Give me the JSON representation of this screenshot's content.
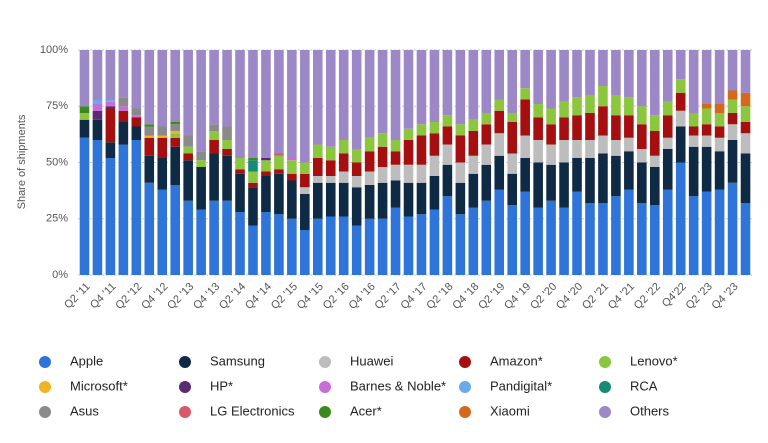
{
  "chart_data": {
    "type": "stacked_bar",
    "y_label": "Share of shipments",
    "categories": [
      "Q2 '11",
      null,
      "Q4 '11",
      null,
      "Q2 '12",
      null,
      "Q4 '12",
      null,
      "Q2 '13",
      null,
      "Q4 '13",
      null,
      "Q2 '14",
      null,
      "Q4 '14",
      null,
      "Q2 '15",
      null,
      "Q4 '15",
      null,
      "Q2 '16",
      null,
      "Q4 '16",
      null,
      "Q2 '17",
      null,
      "Q4 '17",
      null,
      "Q2 '18",
      null,
      "Q4 '18",
      null,
      "Q2 '19",
      null,
      "Q4 '19",
      null,
      "Q2 '20",
      null,
      "Q4 '20",
      null,
      "Q2 '21",
      null,
      "Q4 '21",
      null,
      "Q2 '22",
      null,
      "Q4'22",
      null,
      "Q2 '23",
      null,
      "Q4 '23",
      null
    ],
    "ylim": [
      0,
      100
    ],
    "yticks": [
      {
        "value": 0,
        "label": "0%"
      },
      {
        "value": 25,
        "label": "25%"
      },
      {
        "value": 50,
        "label": "50%"
      },
      {
        "value": 75,
        "label": "75%"
      },
      {
        "value": 100,
        "label": "100%"
      }
    ],
    "grid": true,
    "series": [
      {
        "name": "Apple",
        "color": "#2f74d8",
        "values": [
          61,
          60,
          52,
          58,
          60,
          41,
          38,
          40,
          33,
          29,
          33,
          33,
          28,
          22,
          28,
          27,
          25,
          20,
          25,
          26,
          26,
          22,
          25,
          25,
          30,
          26,
          27,
          29,
          35,
          27,
          30,
          33,
          38,
          31,
          37,
          30,
          33,
          30,
          37,
          32,
          32,
          35,
          38,
          32,
          31,
          38,
          50,
          35,
          37,
          38,
          41,
          32
        ]
      },
      {
        "name": "Samsung",
        "color": "#0f2a44",
        "values": [
          8,
          9,
          7,
          10,
          6,
          12,
          14,
          17,
          18,
          19,
          21,
          20,
          17,
          17,
          16,
          18,
          17,
          16,
          16,
          15,
          15,
          17,
          15,
          16,
          12,
          15,
          14,
          15,
          14,
          14,
          15,
          16,
          15,
          14,
          15,
          20,
          16,
          20,
          15,
          20,
          22,
          18,
          17,
          18,
          17,
          18,
          16,
          22,
          20,
          17,
          19,
          22
        ]
      },
      {
        "name": "Huawei",
        "color": "#bdbdbd",
        "values": [
          0,
          0,
          0,
          0,
          0,
          0,
          0,
          0,
          0,
          0,
          0,
          0,
          0,
          0,
          0,
          0,
          0,
          3,
          3,
          3,
          5,
          5,
          6,
          7,
          7,
          8,
          8,
          9,
          9,
          9,
          8,
          9,
          10,
          9,
          10,
          10,
          9,
          10,
          8,
          8,
          8,
          7,
          6,
          6,
          5,
          5,
          7,
          5,
          5,
          6,
          7,
          9
        ]
      },
      {
        "name": "Amazon*",
        "color": "#a50f0f",
        "values": [
          0,
          0,
          15,
          5,
          4,
          8,
          9,
          4,
          3,
          0,
          6,
          3,
          2,
          2,
          2,
          2,
          3,
          6,
          8,
          7,
          8,
          6,
          9,
          9,
          6,
          11,
          13,
          10,
          8,
          12,
          11,
          9,
          10,
          14,
          16,
          10,
          9,
          10,
          11,
          12,
          13,
          11,
          10,
          11,
          11,
          10,
          8,
          4,
          5,
          5,
          5,
          5
        ]
      },
      {
        "name": "Lenovo*",
        "color": "#8cc63e",
        "values": [
          3,
          0,
          0,
          0,
          0,
          0,
          0,
          2,
          3,
          3,
          4,
          4,
          5,
          5,
          5,
          6,
          6,
          5,
          6,
          6,
          6,
          6,
          6,
          6,
          5,
          5,
          5,
          5,
          5,
          5,
          5,
          5,
          5,
          4,
          5,
          6,
          7,
          7,
          8,
          8,
          9,
          9,
          8,
          8,
          7,
          6,
          6,
          6,
          7,
          6,
          6,
          7
        ]
      },
      {
        "name": "Microsoft*",
        "color": "#f0b323",
        "values": [
          0,
          0,
          0,
          0,
          0,
          1,
          1,
          1,
          0,
          0,
          0,
          0,
          0,
          0,
          0,
          0,
          0,
          0,
          0,
          0,
          0,
          0,
          0,
          0,
          0,
          0,
          0,
          0,
          0,
          0,
          0,
          0,
          0,
          0,
          0,
          0,
          0,
          0,
          0,
          0,
          0,
          0,
          0,
          0,
          0,
          0,
          0,
          0,
          0,
          0,
          0,
          0
        ]
      },
      {
        "name": "HP*",
        "color": "#5a2a73",
        "values": [
          0,
          4,
          1,
          0,
          0,
          0,
          0,
          0,
          0,
          0,
          0,
          0,
          0,
          0,
          1,
          0,
          0,
          0,
          0,
          0,
          0,
          0,
          0,
          0,
          0,
          0,
          0,
          0,
          0,
          0,
          0,
          0,
          0,
          0,
          0,
          0,
          0,
          0,
          0,
          0,
          0,
          0,
          0,
          0,
          0,
          0,
          0,
          0,
          0,
          0,
          0,
          0
        ]
      },
      {
        "name": "Barnes & Noble*",
        "color": "#c86dd7",
        "values": [
          0,
          3,
          2,
          2,
          1,
          0,
          0,
          0,
          0,
          0,
          0,
          0,
          0,
          0,
          0,
          0,
          1,
          0,
          0,
          0,
          0,
          0,
          0,
          0,
          0,
          0,
          0,
          0,
          0,
          0,
          0,
          0,
          0,
          0,
          0,
          0,
          0,
          0,
          0,
          0,
          0,
          0,
          0,
          0,
          0,
          0,
          0,
          0,
          0,
          0,
          0,
          0
        ]
      },
      {
        "name": "Pandigital*",
        "color": "#6aa9ea",
        "values": [
          0,
          2,
          1,
          0,
          0,
          0,
          0,
          0,
          0,
          0,
          0,
          0,
          0,
          0,
          0,
          0,
          0,
          0,
          0,
          0,
          0,
          0,
          0,
          0,
          0,
          0,
          0,
          0,
          0,
          0,
          0,
          0,
          0,
          0,
          0,
          0,
          0,
          0,
          0,
          0,
          0,
          0,
          0,
          0,
          0,
          0,
          0,
          0,
          0,
          0,
          0,
          0
        ]
      },
      {
        "name": "RCA",
        "color": "#158b74",
        "values": [
          0,
          0,
          0,
          0,
          0,
          0,
          0,
          0,
          0,
          0,
          0,
          0,
          0,
          5,
          0,
          0,
          0,
          0,
          0,
          0,
          0,
          0,
          0,
          0,
          0,
          0,
          0,
          0,
          0,
          0,
          0,
          0,
          0,
          0,
          0,
          0,
          0,
          0,
          0,
          0,
          0,
          0,
          0,
          0,
          0,
          0,
          0,
          0,
          0,
          0,
          0,
          0
        ]
      },
      {
        "name": "Asus",
        "color": "#8a8a8a",
        "values": [
          0,
          0,
          0,
          4,
          3,
          4,
          4,
          3,
          5,
          4,
          3,
          6,
          0,
          0,
          0,
          0,
          0,
          0,
          0,
          0,
          0,
          0,
          0,
          0,
          0,
          0,
          0,
          0,
          0,
          0,
          0,
          0,
          0,
          0,
          0,
          0,
          0,
          0,
          0,
          0,
          0,
          0,
          0,
          0,
          0,
          0,
          0,
          0,
          0,
          0,
          0,
          0
        ]
      },
      {
        "name": "LG Electronics",
        "color": "#d65a6a",
        "values": [
          0,
          0,
          0,
          0,
          0,
          0,
          0,
          0,
          0,
          0,
          0,
          0,
          0,
          0,
          0,
          1,
          0,
          0,
          0,
          0,
          0,
          0,
          0,
          0,
          0,
          0,
          0,
          0,
          0,
          0,
          0,
          0,
          0,
          0,
          0,
          0,
          0,
          0,
          0,
          0,
          0,
          0,
          0,
          0,
          0,
          0,
          0,
          0,
          0,
          0,
          0,
          0
        ]
      },
      {
        "name": "Acer*",
        "color": "#3c8a1e",
        "values": [
          3,
          0,
          0,
          0,
          0,
          1,
          0,
          1,
          0,
          0,
          0,
          0,
          0,
          1,
          0,
          0,
          0,
          0,
          0,
          0,
          0,
          0,
          0,
          0,
          0,
          0,
          0,
          0,
          0,
          0,
          0,
          0,
          0,
          0,
          0,
          0,
          0,
          0,
          0,
          0,
          0,
          0,
          0,
          0,
          0,
          0,
          0,
          0,
          0,
          0,
          0,
          0
        ]
      },
      {
        "name": "Xiaomi",
        "color": "#d4691e",
        "values": [
          0,
          0,
          0,
          0,
          0,
          0,
          0,
          0,
          0,
          0,
          0,
          0,
          0,
          0,
          0,
          0,
          0,
          0,
          0,
          0,
          0,
          0,
          0,
          0,
          0,
          0,
          0,
          0,
          0,
          0,
          0,
          0,
          0,
          0,
          0,
          0,
          0,
          0,
          0,
          0,
          0,
          0,
          0,
          0,
          0,
          0,
          0,
          0,
          2,
          4,
          4,
          6
        ]
      },
      {
        "name": "Others",
        "color": "#9c88c6",
        "values": [
          25,
          22,
          22,
          21,
          26,
          33,
          34,
          32,
          38,
          45,
          33,
          34,
          48,
          48,
          48,
          46,
          48,
          50,
          42,
          43,
          40,
          44,
          39,
          37,
          40,
          35,
          33,
          32,
          29,
          33,
          31,
          28,
          22,
          28,
          17,
          24,
          26,
          23,
          21,
          20,
          16,
          20,
          21,
          25,
          29,
          23,
          13,
          28,
          24,
          24,
          18,
          19
        ]
      }
    ]
  }
}
